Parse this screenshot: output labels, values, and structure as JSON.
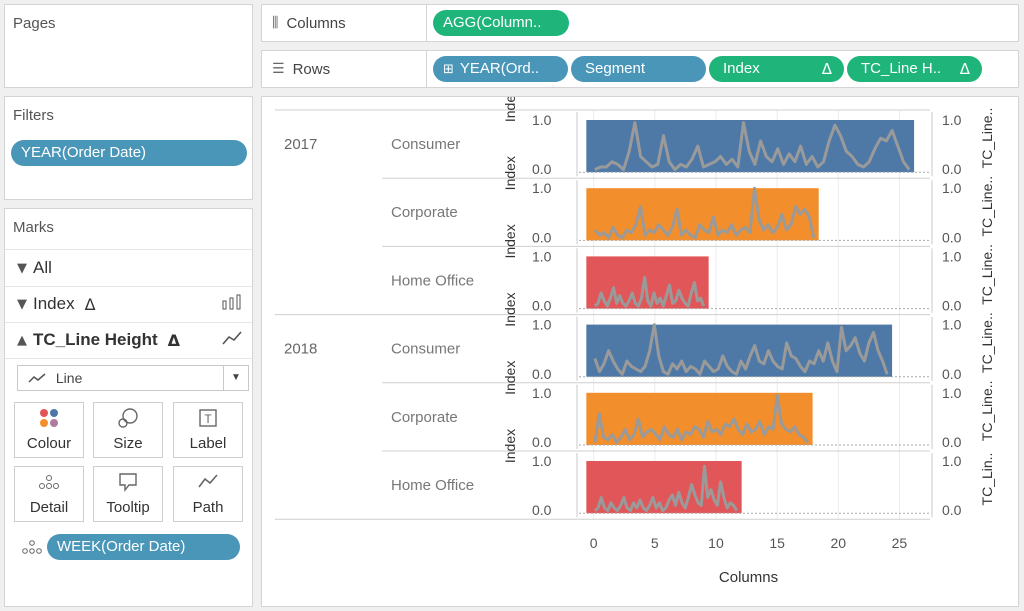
{
  "pages": {
    "title": "Pages"
  },
  "filters": {
    "title": "Filters",
    "pill": "YEAR(Order Date)"
  },
  "marks": {
    "title": "Marks",
    "rows": [
      {
        "label": "All",
        "chevron": "down",
        "delta": "",
        "tail_icon": ""
      },
      {
        "label": "Index",
        "chevron": "down",
        "delta": "Δ",
        "tail_icon": "bar-chart-icon"
      },
      {
        "label": "TC_Line Height",
        "chevron": "up",
        "delta": "Δ",
        "tail_icon": "line-chart-icon"
      }
    ],
    "mark_type": "Line",
    "buttons": [
      "Colour",
      "Size",
      "Label",
      "Detail",
      "Tooltip",
      "Path"
    ],
    "detail_pill": "WEEK(Order Date)"
  },
  "columns_shelf": {
    "label": "Columns",
    "pills": [
      "AGG(Column.."
    ]
  },
  "rows_shelf": {
    "label": "Rows",
    "pills": [
      "YEAR(Ord..",
      "Segment",
      "Index",
      "TC_Line H.."
    ],
    "delta": "Δ"
  },
  "chart_data": {
    "type": "bar",
    "xlabel": "Columns",
    "x_ticks": [
      0,
      5,
      10,
      15,
      20,
      25
    ],
    "xlim": [
      -1.2,
      27.5
    ],
    "left_axis_title": "Index",
    "left_axis_ticks": [
      "1.0",
      "0.0"
    ],
    "right_axis_titles": [
      "TC_Line..",
      "TC_Line..",
      "TC_Line..",
      "TC_Line..",
      "TC_Line..",
      "TC_Lin.."
    ],
    "right_axis_ticks": [
      "1.0",
      "0.0"
    ],
    "colors": {
      "Consumer": "#4e79a7",
      "Corporate": "#f28e2b",
      "Home Office": "#e15759",
      "line": "#9a9a9a"
    },
    "rows": [
      {
        "year": "2017",
        "segment": "Consumer",
        "bar_end": 26.2,
        "line": [
          0.05,
          0.1,
          0.1,
          0.2,
          0.15,
          0.05,
          0.4,
          0.95,
          0.3,
          0.2,
          0.1,
          0.15,
          0.7,
          0.2,
          0.05,
          0.15,
          0.1,
          0.25,
          0.5,
          0.1,
          0.15,
          0.2,
          0.3,
          0.15,
          0.25,
          0.1,
          0.95,
          0.4,
          0.15,
          0.6,
          0.3,
          0.2,
          0.45,
          0.15,
          0.35,
          0.2,
          0.5,
          0.15,
          0.3,
          0.1,
          0.2,
          0.6,
          0.9,
          0.7,
          0.4,
          0.3,
          0.15,
          0.1,
          0.2,
          0.45,
          0.65,
          0.6,
          0.8,
          0.5,
          0.2,
          0.05
        ]
      },
      {
        "year": "",
        "segment": "Corporate",
        "bar_end": 18.4,
        "line": [
          0.2,
          0.1,
          0.15,
          0.05,
          0.25,
          0.1,
          0.05,
          0.2,
          0.15,
          0.3,
          0.65,
          0.1,
          0.2,
          0.15,
          0.3,
          0.2,
          0.1,
          0.25,
          0.6,
          0.1,
          0.2,
          0.1,
          0.05,
          0.3,
          0.2,
          0.15,
          0.45,
          0.1,
          0.2,
          0.15,
          0.3,
          0.1,
          0.2,
          0.25,
          0.15,
          1.0,
          0.4,
          0.2,
          0.3,
          0.15,
          0.25,
          0.5,
          0.2,
          0.3,
          0.65,
          0.5,
          0.6,
          0.45,
          0.05
        ]
      },
      {
        "year": "",
        "segment": "Home Office",
        "bar_end": 9.4,
        "line": [
          0.05,
          0.1,
          0.3,
          0.15,
          0.05,
          0.2,
          0.4,
          0.1,
          0.25,
          0.1,
          0.05,
          0.15,
          0.3,
          0.1,
          0.05,
          0.2,
          0.6,
          0.15,
          0.05,
          0.3,
          0.1,
          0.2,
          0.05,
          0.25,
          0.45,
          0.1,
          0.15,
          0.35,
          0.2,
          0.1,
          0.05,
          0.3,
          0.5,
          0.15,
          0.2,
          0.05
        ]
      },
      {
        "year": "2018",
        "segment": "Consumer",
        "bar_end": 24.4,
        "line": [
          0.35,
          0.1,
          0.25,
          0.5,
          0.3,
          0.15,
          0.05,
          0.3,
          0.2,
          0.15,
          0.1,
          0.2,
          0.5,
          1.0,
          0.4,
          0.1,
          0.05,
          0.25,
          0.15,
          0.3,
          0.1,
          0.2,
          0.15,
          0.05,
          0.3,
          0.2,
          0.1,
          0.15,
          0.4,
          0.2,
          0.1,
          0.05,
          0.3,
          0.15,
          0.4,
          0.6,
          0.3,
          0.25,
          0.5,
          0.3,
          0.2,
          0.15,
          0.65,
          0.4,
          0.35,
          0.2,
          0.1,
          0.3,
          0.25,
          0.5,
          0.3,
          0.65,
          0.3,
          0.1,
          0.95,
          0.5,
          0.6,
          0.75,
          0.45,
          0.3,
          0.65,
          0.85,
          0.5,
          0.3,
          0.05
        ]
      },
      {
        "year": "",
        "segment": "Corporate",
        "bar_end": 17.9,
        "line": [
          0.05,
          0.6,
          0.15,
          0.1,
          0.2,
          0.05,
          0.15,
          0.3,
          0.1,
          0.2,
          0.5,
          0.15,
          0.25,
          0.3,
          0.2,
          0.1,
          0.35,
          0.2,
          0.15,
          0.3,
          0.1,
          0.25,
          0.2,
          0.35,
          0.3,
          0.15,
          0.45,
          0.25,
          0.3,
          0.2,
          0.4,
          0.35,
          0.5,
          0.3,
          0.2,
          0.4,
          0.25,
          0.3,
          0.45,
          0.2,
          0.35,
          0.3,
          0.95,
          0.4,
          0.3,
          0.25,
          0.35,
          0.2,
          0.15,
          0.05
        ]
      },
      {
        "year": "",
        "segment": "Home Office",
        "bar_end": 12.1,
        "line": [
          0.05,
          0.1,
          0.3,
          0.1,
          0.05,
          0.2,
          0.1,
          0.05,
          0.15,
          0.3,
          0.1,
          0.05,
          0.2,
          0.1,
          0.25,
          0.1,
          0.05,
          0.15,
          0.3,
          0.1,
          0.2,
          0.05,
          0.1,
          0.25,
          0.35,
          0.15,
          0.4,
          0.2,
          0.1,
          0.3,
          0.55,
          0.35,
          0.2,
          0.15,
          0.9,
          0.3,
          0.45,
          0.25,
          0.15,
          0.6,
          0.3,
          0.1,
          0.2,
          0.15,
          0.05
        ]
      }
    ]
  }
}
